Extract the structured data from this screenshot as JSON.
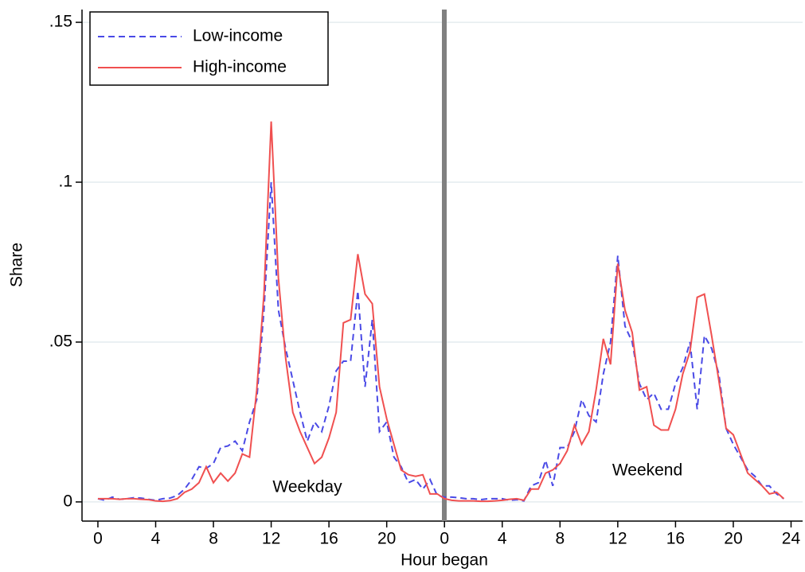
{
  "chart_data": {
    "type": "line",
    "xlabel": "Hour began",
    "ylabel": "Share",
    "xlim": [
      -1.1,
      48.8
    ],
    "ylim": [
      -0.006,
      0.154
    ],
    "xticks": [
      0,
      4,
      8,
      12,
      16,
      20,
      {
        "value": 24,
        "label": "0"
      },
      {
        "value": 28,
        "label": "4"
      },
      {
        "value": 32,
        "label": "8"
      },
      {
        "value": 36,
        "label": "12"
      },
      {
        "value": 40,
        "label": "16"
      },
      {
        "value": 44,
        "label": "20"
      },
      {
        "value": 48,
        "label": "24"
      }
    ],
    "yticks": [
      0,
      {
        "value": 0.05,
        "label": ".05"
      },
      {
        "value": 0.1,
        "label": ".1"
      },
      {
        "value": 0.15,
        "label": ".15"
      }
    ],
    "grid": true,
    "legend": "upper left",
    "annotations": [
      "Weekday",
      "Weekend"
    ],
    "x": [
      0,
      0.5,
      1,
      1.5,
      2,
      2.5,
      3,
      3.5,
      4,
      4.5,
      5,
      5.5,
      6,
      6.5,
      7,
      7.5,
      8,
      8.5,
      9,
      9.5,
      10,
      10.5,
      11,
      11.5,
      12,
      12.5,
      13,
      13.5,
      14,
      14.5,
      15,
      15.5,
      16,
      16.5,
      17,
      17.5,
      18,
      18.5,
      19,
      19.5,
      20,
      20.5,
      21,
      21.5,
      22,
      22.5,
      23,
      23.5,
      24,
      24.5,
      25,
      25.5,
      26,
      26.5,
      27,
      27.5,
      28,
      28.5,
      29,
      29.5,
      30,
      30.5,
      31,
      31.5,
      32,
      32.5,
      33,
      33.5,
      34,
      34.5,
      35,
      35.5,
      36,
      36.5,
      37,
      37.5,
      38,
      38.5,
      39,
      39.5,
      40,
      40.5,
      41,
      41.5,
      42,
      42.5,
      43,
      43.5,
      44,
      44.5,
      45,
      45.5,
      46,
      46.5,
      47,
      47.5
    ],
    "series": [
      {
        "name": "Low-income",
        "color": "#4a4ae6",
        "dash": true,
        "values": [
          0.001,
          0.0005,
          0.0015,
          0.0008,
          0.001,
          0.0013,
          0.0012,
          0.0008,
          0.0005,
          0.001,
          0.0012,
          0.002,
          0.004,
          0.007,
          0.011,
          0.0105,
          0.012,
          0.017,
          0.0175,
          0.019,
          0.016,
          0.025,
          0.032,
          0.06,
          0.1,
          0.06,
          0.048,
          0.038,
          0.028,
          0.019,
          0.025,
          0.022,
          0.03,
          0.041,
          0.044,
          0.044,
          0.066,
          0.036,
          0.057,
          0.022,
          0.025,
          0.014,
          0.011,
          0.006,
          0.007,
          0.004,
          0.007,
          0.002,
          0.0015,
          0.0015,
          0.0013,
          0.001,
          0.001,
          0.0007,
          0.001,
          0.001,
          0.001,
          0.0005,
          0.0007,
          0.0003,
          0.005,
          0.006,
          0.013,
          0.005,
          0.017,
          0.017,
          0.022,
          0.032,
          0.027,
          0.025,
          0.04,
          0.05,
          0.077,
          0.055,
          0.05,
          0.037,
          0.032,
          0.034,
          0.029,
          0.029,
          0.037,
          0.042,
          0.05,
          0.029,
          0.052,
          0.048,
          0.04,
          0.023,
          0.018,
          0.014,
          0.01,
          0.008,
          0.005,
          0.005,
          0.0025,
          0.001
        ]
      },
      {
        "name": "High-income",
        "color": "#f05050",
        "dash": false,
        "values": [
          0.001,
          0.001,
          0.001,
          0.0008,
          0.001,
          0.001,
          0.0008,
          0.0007,
          0.0003,
          0.0002,
          0.0004,
          0.001,
          0.003,
          0.004,
          0.006,
          0.011,
          0.006,
          0.009,
          0.0065,
          0.009,
          0.015,
          0.014,
          0.035,
          0.065,
          0.119,
          0.07,
          0.045,
          0.028,
          0.022,
          0.017,
          0.012,
          0.014,
          0.02,
          0.028,
          0.056,
          0.057,
          0.0775,
          0.065,
          0.062,
          0.036,
          0.026,
          0.018,
          0.01,
          0.0085,
          0.008,
          0.0085,
          0.0025,
          0.0025,
          0.001,
          0.0005,
          0.0003,
          0.0003,
          0.0003,
          0.0002,
          0.0002,
          0.0003,
          0.0005,
          0.0008,
          0.001,
          0.0005,
          0.004,
          0.004,
          0.009,
          0.01,
          0.012,
          0.016,
          0.024,
          0.018,
          0.022,
          0.035,
          0.051,
          0.043,
          0.0745,
          0.06,
          0.053,
          0.035,
          0.036,
          0.024,
          0.0225,
          0.0225,
          0.029,
          0.04,
          0.047,
          0.064,
          0.065,
          0.052,
          0.038,
          0.023,
          0.021,
          0.015,
          0.009,
          0.007,
          0.005,
          0.0025,
          0.003,
          0.001
        ]
      }
    ]
  }
}
